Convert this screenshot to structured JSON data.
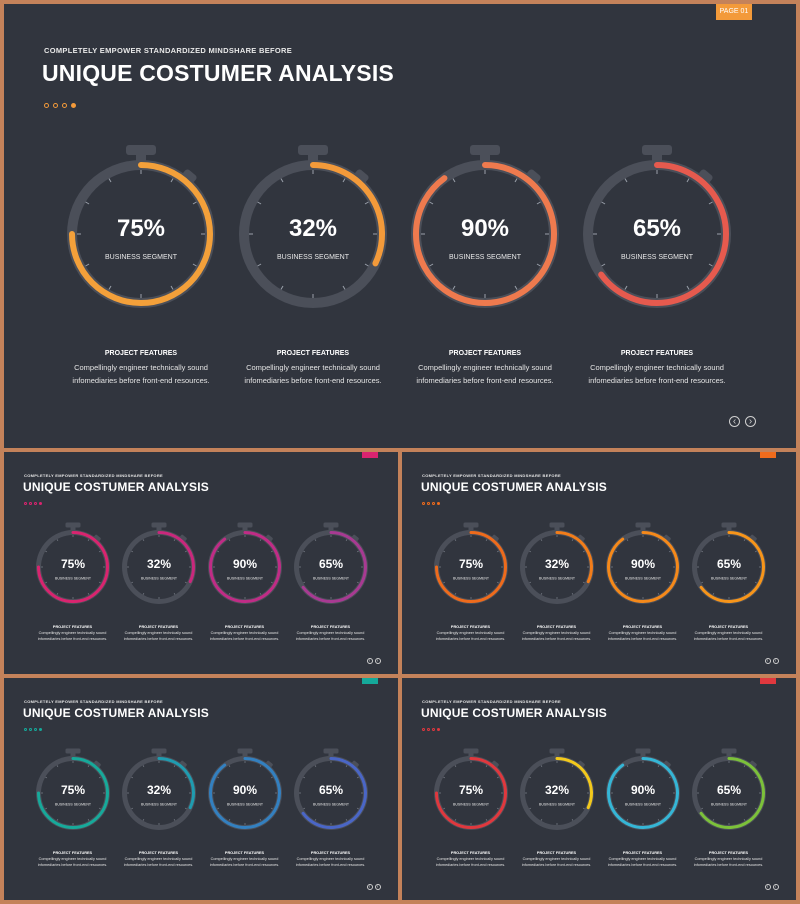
{
  "content": {
    "kicker": "COMPLETELY EMPOWER STANDARDIZED MINDSHARE BEFORE",
    "title": "UNIQUE COSTUMER ANALYSIS",
    "page_badge": "PAGE 01",
    "segment_label": "BUSINESS SEGMENT",
    "feature_heading": "PROJECT FEATURES",
    "feature_line1": "Compellingly engineer technically sound",
    "feature_line2": "infomediaries before front-end resources.",
    "values": [
      75,
      32,
      90,
      65
    ],
    "value_labels": [
      "75%",
      "32%",
      "90%",
      "65%"
    ]
  },
  "slides": [
    {
      "id": "main",
      "badge_color": "#f39a3a",
      "dot_color": "#f39a3a",
      "ring_colors": [
        "#f3a03a",
        "#f39a3a",
        "#ee7a4e",
        "#e65a4e"
      ],
      "gradient": "orange-red"
    },
    {
      "id": "pink",
      "badge_color": "#d9246f",
      "dot_color": "#d9246f",
      "ring_colors": [
        "#d9246f",
        "#c9287c",
        "#c02c86",
        "#a83a92"
      ],
      "gradient": "pink-purple"
    },
    {
      "id": "orange",
      "badge_color": "#ef6b1c",
      "dot_color": "#ef6b1c",
      "ring_colors": [
        "#ee6b1c",
        "#f27d1a",
        "#f5891a",
        "#f7951a"
      ],
      "gradient": "orange"
    },
    {
      "id": "teal",
      "badge_color": "#15a99a",
      "dot_color": "#15a99a",
      "ring_colors": [
        "#17a99a",
        "#1f9cb0",
        "#3380c0",
        "#4a66c6"
      ],
      "gradient": "teal-blue"
    },
    {
      "id": "multi",
      "badge_color": "#e0383e",
      "dot_color": "#e0383e",
      "ring_colors": [
        "#e0383e",
        "#f3c91c",
        "#35b6d6",
        "#7cc13a"
      ],
      "gradient": "multicolor"
    }
  ],
  "icons": {
    "prev": "chevron-left-icon",
    "next": "chevron-right-icon"
  }
}
